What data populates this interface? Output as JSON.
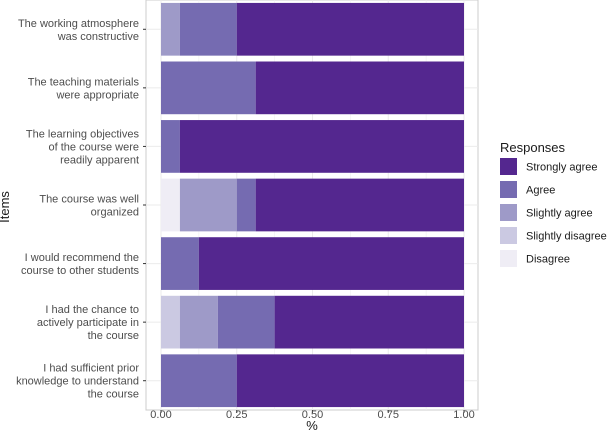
{
  "chart_data": {
    "type": "bar",
    "orientation": "horizontal",
    "stacked": true,
    "categories": [
      "The working atmosphere was constructive",
      "The teaching materials were appropriate",
      "The learning objectives of the course were readily apparent",
      "The course was well organized",
      "I would recommend the course to other students",
      "I had the chance to actively participate in the course",
      "I had sufficient prior knowledge to understand the course"
    ],
    "category_lines": [
      [
        "The working atmosphere",
        "was constructive"
      ],
      [
        "The teaching materials",
        "were appropriate"
      ],
      [
        "The learning objectives",
        "of the course were",
        "readily apparent"
      ],
      [
        "The course was well",
        "organized"
      ],
      [
        "I would recommend the",
        "course to other students"
      ],
      [
        "I had the chance to",
        "actively participate in",
        "the course"
      ],
      [
        "I had sufficient prior",
        "knowledge to understand",
        "the course"
      ]
    ],
    "series": [
      {
        "name": "Disagree",
        "color": "#efedf5",
        "values": [
          0,
          0,
          0,
          0.0625,
          0,
          0,
          0
        ]
      },
      {
        "name": "Slightly disagree",
        "color": "#cbc9e2",
        "values": [
          0,
          0,
          0,
          0,
          0,
          0.0625,
          0
        ]
      },
      {
        "name": "Slightly agree",
        "color": "#9e9ac8",
        "values": [
          0.0625,
          0,
          0,
          0.1875,
          0,
          0.125,
          0
        ]
      },
      {
        "name": "Agree",
        "color": "#756bb1",
        "values": [
          0.1875,
          0.3125,
          0.0625,
          0.0625,
          0.125,
          0.1875,
          0.25
        ]
      },
      {
        "name": "Strongly agree",
        "color": "#54278f",
        "values": [
          0.75,
          0.6875,
          0.9375,
          0.6875,
          0.875,
          0.625,
          0.75
        ]
      }
    ],
    "xlabel": "%",
    "ylabel": "Items",
    "xlim": [
      0,
      1
    ],
    "xticks": [
      "0.00",
      "0.25",
      "0.50",
      "0.75",
      "1.00"
    ],
    "xtick_values": [
      0,
      0.25,
      0.5,
      0.75,
      1
    ],
    "grid": true,
    "legend": {
      "title": "Responses",
      "placement": "right",
      "order": [
        "Strongly agree",
        "Agree",
        "Slightly agree",
        "Slightly disagree",
        "Disagree"
      ]
    }
  }
}
